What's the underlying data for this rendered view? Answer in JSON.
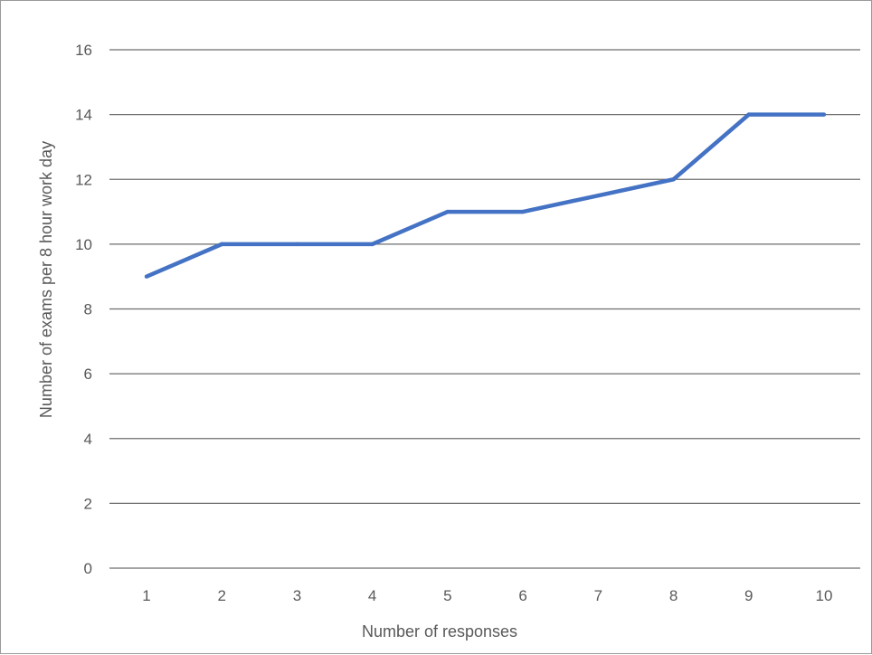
{
  "chart_data": {
    "type": "line",
    "title": "",
    "xlabel": "Number of responses",
    "ylabel": "Number of exams per 8 hour work day",
    "x": [
      1,
      2,
      3,
      4,
      5,
      6,
      7,
      8,
      9,
      10
    ],
    "x_tick_labels": [
      "1",
      "2",
      "3",
      "4",
      "5",
      "6",
      "7",
      "8",
      "9",
      "10"
    ],
    "y_tick_labels": [
      "0",
      "2",
      "4",
      "6",
      "8",
      "10",
      "12",
      "14",
      "16"
    ],
    "ylim": [
      0,
      16
    ],
    "y_tick_step": 2,
    "grid": true,
    "series": [
      {
        "values": [
          9,
          10,
          10,
          10,
          11,
          11,
          11.5,
          12,
          14,
          14
        ],
        "color": "#4472c4"
      }
    ]
  }
}
